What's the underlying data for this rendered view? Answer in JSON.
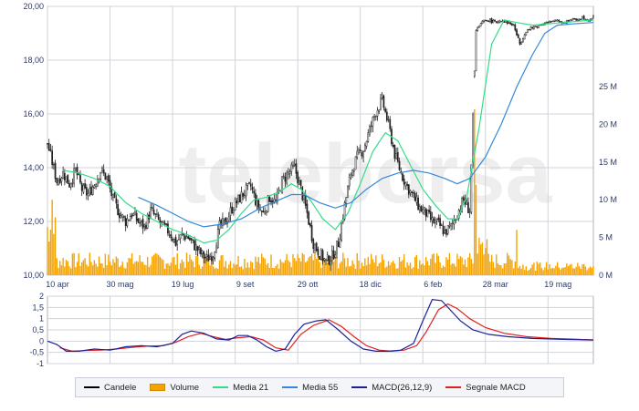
{
  "chart_data": [
    {
      "type": "candlestick",
      "panel": "price",
      "ylim": [
        10,
        20
      ],
      "y_ticks": [
        "10,00",
        "12,00",
        "14,00",
        "16,00",
        "18,00",
        "20,00"
      ],
      "y2_ticks": [
        "0 M",
        "5 M",
        "10 M",
        "15 M",
        "20 M",
        "25 M"
      ],
      "y2lim": [
        0,
        25
      ],
      "x_tick_labels": [
        "10 apr",
        "30 mag",
        "19 lug",
        "9 set",
        "29 ott",
        "18 dic",
        "6 feb",
        "28 mar",
        "19 mag"
      ],
      "grid": true,
      "series": [
        {
          "name": "Candele",
          "close_path": [
            [
              0,
              14.9
            ],
            [
              3,
              14.2
            ],
            [
              6,
              13.5
            ],
            [
              10,
              13.8
            ],
            [
              14,
              13.4
            ],
            [
              18,
              13.9
            ],
            [
              22,
              13.2
            ],
            [
              26,
              13.0
            ],
            [
              30,
              13.4
            ],
            [
              34,
              13.9
            ],
            [
              38,
              13.6
            ],
            [
              42,
              12.8
            ],
            [
              46,
              12.3
            ],
            [
              50,
              12.0
            ],
            [
              54,
              12.3
            ],
            [
              58,
              12.0
            ],
            [
              62,
              11.8
            ],
            [
              66,
              12.4
            ],
            [
              70,
              12.1
            ],
            [
              74,
              11.8
            ],
            [
              78,
              11.6
            ],
            [
              82,
              11.2
            ],
            [
              86,
              11.5
            ],
            [
              90,
              11.4
            ],
            [
              94,
              11.1
            ],
            [
              98,
              10.8
            ],
            [
              102,
              10.6
            ],
            [
              106,
              10.8
            ],
            [
              110,
              11.8
            ],
            [
              114,
              12.0
            ],
            [
              118,
              12.5
            ],
            [
              122,
              12.8
            ],
            [
              126,
              13.1
            ],
            [
              130,
              13.3
            ],
            [
              134,
              12.6
            ],
            [
              138,
              12.3
            ],
            [
              142,
              12.9
            ],
            [
              146,
              12.7
            ],
            [
              150,
              13.5
            ],
            [
              154,
              13.8
            ],
            [
              158,
              14.0
            ],
            [
              162,
              13.2
            ],
            [
              166,
              12.3
            ],
            [
              170,
              11.2
            ],
            [
              174,
              10.8
            ],
            [
              178,
              10.5
            ],
            [
              182,
              10.7
            ],
            [
              186,
              11.2
            ],
            [
              190,
              12.6
            ],
            [
              194,
              13.8
            ],
            [
              198,
              14.4
            ],
            [
              202,
              14.7
            ],
            [
              206,
              15.4
            ],
            [
              210,
              16.1
            ],
            [
              214,
              16.5
            ],
            [
              218,
              15.6
            ],
            [
              222,
              14.5
            ],
            [
              226,
              13.8
            ],
            [
              230,
              13.3
            ],
            [
              234,
              12.9
            ],
            [
              238,
              12.5
            ],
            [
              242,
              12.3
            ],
            [
              246,
              12.0
            ],
            [
              250,
              11.9
            ],
            [
              254,
              11.6
            ],
            [
              258,
              11.8
            ],
            [
              262,
              12.3
            ],
            [
              266,
              12.8
            ],
            [
              270,
              12.4
            ],
            [
              274,
              19.1
            ],
            [
              278,
              19.4
            ],
            [
              282,
              19.5
            ],
            [
              286,
              19.4
            ],
            [
              290,
              19.5
            ],
            [
              294,
              19.4
            ],
            [
              298,
              19.3
            ],
            [
              302,
              18.6
            ],
            [
              306,
              19.1
            ],
            [
              310,
              19.2
            ],
            [
              314,
              19.3
            ],
            [
              318,
              19.4
            ],
            [
              322,
              19.4
            ],
            [
              326,
              19.5
            ],
            [
              330,
              19.4
            ],
            [
              334,
              19.5
            ],
            [
              338,
              19.5
            ],
            [
              342,
              19.6
            ],
            [
              346,
              19.5
            ],
            [
              349,
              19.6
            ]
          ]
        },
        {
          "name": "Volume",
          "axis": "y2",
          "unit": "M"
        },
        {
          "name": "Media 21",
          "path": [
            [
              10,
              13.9
            ],
            [
              20,
              13.8
            ],
            [
              30,
              13.6
            ],
            [
              40,
              13.3
            ],
            [
              50,
              12.7
            ],
            [
              60,
              12.3
            ],
            [
              70,
              12.0
            ],
            [
              80,
              11.7
            ],
            [
              90,
              11.5
            ],
            [
              100,
              11.2
            ],
            [
              108,
              11.3
            ],
            [
              116,
              11.7
            ],
            [
              124,
              12.3
            ],
            [
              132,
              12.8
            ],
            [
              140,
              12.9
            ],
            [
              148,
              13.1
            ],
            [
              156,
              13.4
            ],
            [
              162,
              13.2
            ],
            [
              168,
              12.8
            ],
            [
              176,
              12.1
            ],
            [
              184,
              11.7
            ],
            [
              192,
              12.3
            ],
            [
              200,
              13.4
            ],
            [
              208,
              14.6
            ],
            [
              216,
              15.3
            ],
            [
              224,
              15.0
            ],
            [
              232,
              14.1
            ],
            [
              240,
              13.2
            ],
            [
              248,
              12.6
            ],
            [
              256,
              12.1
            ],
            [
              262,
              12.1
            ],
            [
              268,
              12.9
            ],
            [
              276,
              15.5
            ],
            [
              284,
              18.6
            ],
            [
              292,
              19.5
            ],
            [
              300,
              19.4
            ],
            [
              310,
              19.3
            ],
            [
              320,
              19.35
            ],
            [
              330,
              19.4
            ],
            [
              340,
              19.45
            ],
            [
              349,
              19.5
            ]
          ]
        },
        {
          "name": "Media 55",
          "path": [
            [
              58,
              12.9
            ],
            [
              70,
              12.6
            ],
            [
              80,
              12.3
            ],
            [
              90,
              12.0
            ],
            [
              100,
              11.8
            ],
            [
              112,
              11.9
            ],
            [
              124,
              12.1
            ],
            [
              136,
              12.5
            ],
            [
              148,
              12.8
            ],
            [
              156,
              13.0
            ],
            [
              164,
              13.0
            ],
            [
              174,
              12.7
            ],
            [
              184,
              12.5
            ],
            [
              194,
              12.7
            ],
            [
              204,
              13.2
            ],
            [
              214,
              13.6
            ],
            [
              224,
              13.8
            ],
            [
              234,
              13.9
            ],
            [
              244,
              13.8
            ],
            [
              254,
              13.6
            ],
            [
              262,
              13.4
            ],
            [
              270,
              13.6
            ],
            [
              280,
              14.4
            ],
            [
              290,
              15.6
            ],
            [
              300,
              17.0
            ],
            [
              310,
              18.2
            ],
            [
              318,
              19.0
            ],
            [
              326,
              19.3
            ],
            [
              336,
              19.35
            ],
            [
              349,
              19.4
            ]
          ]
        }
      ]
    },
    {
      "type": "line",
      "panel": "macd",
      "ylim": [
        -1,
        2
      ],
      "y_ticks": [
        "2",
        "1,5",
        "1",
        "0,5",
        "0",
        "-0,5",
        "-1"
      ],
      "grid": true,
      "series": [
        {
          "name": "MACD(26,12,9)",
          "path": [
            [
              0,
              0.0
            ],
            [
              6,
              -0.15
            ],
            [
              12,
              -0.45
            ],
            [
              20,
              -0.45
            ],
            [
              30,
              -0.35
            ],
            [
              40,
              -0.4
            ],
            [
              50,
              -0.25
            ],
            [
              60,
              -0.2
            ],
            [
              70,
              -0.25
            ],
            [
              80,
              -0.1
            ],
            [
              86,
              0.3
            ],
            [
              92,
              0.45
            ],
            [
              100,
              0.35
            ],
            [
              108,
              0.1
            ],
            [
              116,
              0.05
            ],
            [
              122,
              0.25
            ],
            [
              128,
              0.25
            ],
            [
              134,
              0.05
            ],
            [
              140,
              -0.25
            ],
            [
              146,
              -0.45
            ],
            [
              152,
              -0.35
            ],
            [
              158,
              0.3
            ],
            [
              164,
              0.75
            ],
            [
              172,
              0.9
            ],
            [
              178,
              0.95
            ],
            [
              186,
              0.5
            ],
            [
              194,
              0.0
            ],
            [
              202,
              -0.35
            ],
            [
              210,
              -0.45
            ],
            [
              218,
              -0.45
            ],
            [
              226,
              -0.4
            ],
            [
              234,
              -0.1
            ],
            [
              240,
              0.9
            ],
            [
              246,
              1.85
            ],
            [
              252,
              1.8
            ],
            [
              258,
              1.35
            ],
            [
              264,
              0.9
            ],
            [
              272,
              0.5
            ],
            [
              282,
              0.3
            ],
            [
              294,
              0.2
            ],
            [
              310,
              0.12
            ],
            [
              330,
              0.08
            ],
            [
              349,
              0.05
            ]
          ]
        },
        {
          "name": "Segnale MACD",
          "path": [
            [
              8,
              -0.3
            ],
            [
              16,
              -0.45
            ],
            [
              24,
              -0.42
            ],
            [
              34,
              -0.4
            ],
            [
              44,
              -0.35
            ],
            [
              54,
              -0.28
            ],
            [
              64,
              -0.22
            ],
            [
              74,
              -0.2
            ],
            [
              82,
              -0.05
            ],
            [
              90,
              0.2
            ],
            [
              98,
              0.35
            ],
            [
              106,
              0.2
            ],
            [
              114,
              0.08
            ],
            [
              122,
              0.15
            ],
            [
              130,
              0.2
            ],
            [
              138,
              0.05
            ],
            [
              146,
              -0.3
            ],
            [
              154,
              -0.4
            ],
            [
              162,
              0.3
            ],
            [
              170,
              0.7
            ],
            [
              180,
              0.95
            ],
            [
              188,
              0.65
            ],
            [
              196,
              0.2
            ],
            [
              204,
              -0.2
            ],
            [
              212,
              -0.4
            ],
            [
              220,
              -0.45
            ],
            [
              228,
              -0.4
            ],
            [
              236,
              -0.2
            ],
            [
              242,
              0.4
            ],
            [
              250,
              1.4
            ],
            [
              256,
              1.65
            ],
            [
              262,
              1.45
            ],
            [
              270,
              1.0
            ],
            [
              280,
              0.6
            ],
            [
              292,
              0.35
            ],
            [
              306,
              0.2
            ],
            [
              322,
              0.12
            ],
            [
              340,
              0.08
            ],
            [
              349,
              0.06
            ]
          ]
        }
      ]
    }
  ],
  "legend": [
    {
      "label": "Candele",
      "color": "#000000",
      "kind": "line"
    },
    {
      "label": "Volume",
      "color": "#f5a300",
      "kind": "box"
    },
    {
      "label": "Media 21",
      "color": "#33dd88",
      "kind": "line"
    },
    {
      "label": "Media 55",
      "color": "#3388dd",
      "kind": "line"
    },
    {
      "label": "MACD(26,12,9)",
      "color": "#1a2299",
      "kind": "line"
    },
    {
      "label": "Segnale MACD",
      "color": "#dd2222",
      "kind": "line"
    }
  ],
  "watermark": "teleborsa",
  "colors": {
    "grid": "#cfd3da",
    "axis_label": "#2a3a66",
    "volume": "#f5a300",
    "candle": "#222222",
    "ma21": "#33dd88",
    "ma55": "#3388dd",
    "macd": "#1a2299",
    "signal": "#dd2222"
  }
}
